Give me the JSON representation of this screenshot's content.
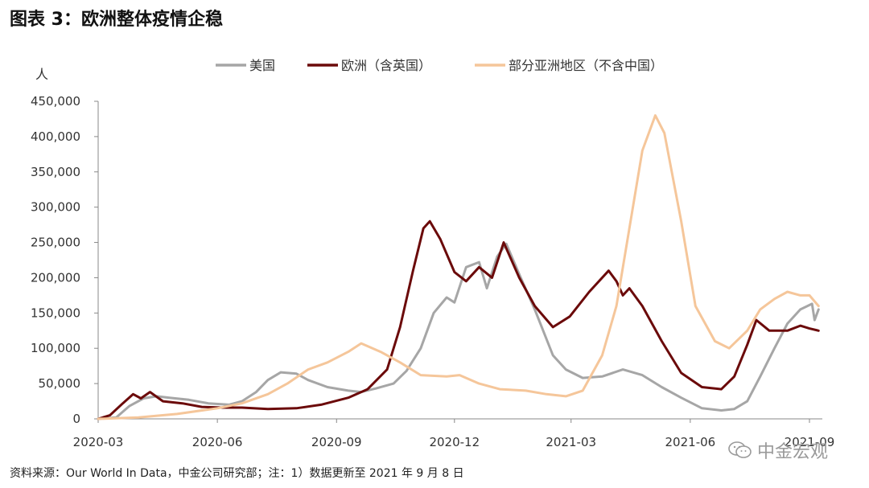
{
  "title": "图表 3：欧洲整体疫情企稳",
  "source": "资料来源：Our World In Data，中金公司研究部；注：1）数据更新至 2021 年 9 月 8 日",
  "watermark": "中金宏观",
  "chart_data": {
    "type": "line",
    "ylabel": "人",
    "ylim": [
      0,
      450000
    ],
    "yticks": [
      0,
      50000,
      100000,
      150000,
      200000,
      250000,
      300000,
      350000,
      400000,
      450000
    ],
    "ytick_labels": [
      "0",
      "50,000",
      "100,000",
      "150,000",
      "200,000",
      "250,000",
      "300,000",
      "350,000",
      "400,000",
      "450,000"
    ],
    "xlim": [
      "2020-03-01",
      "2021-09-08"
    ],
    "xticks": [
      "2020-03",
      "2020-06",
      "2020-09",
      "2020-12",
      "2021-03",
      "2021-06",
      "2021-09"
    ],
    "legend_position": "top",
    "grid": false,
    "series": [
      {
        "name": "美国",
        "color": "#a6a6a6",
        "points": [
          [
            "2020-03-01",
            0
          ],
          [
            "2020-03-15",
            2000
          ],
          [
            "2020-03-25",
            18000
          ],
          [
            "2020-04-05",
            29000
          ],
          [
            "2020-04-15",
            32000
          ],
          [
            "2020-04-25",
            30000
          ],
          [
            "2020-05-10",
            27000
          ],
          [
            "2020-05-25",
            22000
          ],
          [
            "2020-06-10",
            20000
          ],
          [
            "2020-06-20",
            25000
          ],
          [
            "2020-07-01",
            38000
          ],
          [
            "2020-07-10",
            55000
          ],
          [
            "2020-07-20",
            66000
          ],
          [
            "2020-08-01",
            64000
          ],
          [
            "2020-08-10",
            55000
          ],
          [
            "2020-08-25",
            45000
          ],
          [
            "2020-09-10",
            40000
          ],
          [
            "2020-09-20",
            38000
          ],
          [
            "2020-10-01",
            43000
          ],
          [
            "2020-10-15",
            50000
          ],
          [
            "2020-10-25",
            68000
          ],
          [
            "2020-11-05",
            100000
          ],
          [
            "2020-11-15",
            150000
          ],
          [
            "2020-11-25",
            172000
          ],
          [
            "2020-12-01",
            165000
          ],
          [
            "2020-12-10",
            215000
          ],
          [
            "2020-12-20",
            222000
          ],
          [
            "2020-12-26",
            185000
          ],
          [
            "2021-01-03",
            230000
          ],
          [
            "2021-01-10",
            248000
          ],
          [
            "2021-01-20",
            205000
          ],
          [
            "2021-02-01",
            155000
          ],
          [
            "2021-02-15",
            90000
          ],
          [
            "2021-02-25",
            70000
          ],
          [
            "2021-03-10",
            58000
          ],
          [
            "2021-03-25",
            60000
          ],
          [
            "2021-04-10",
            70000
          ],
          [
            "2021-04-25",
            62000
          ],
          [
            "2021-05-10",
            45000
          ],
          [
            "2021-05-25",
            30000
          ],
          [
            "2021-06-10",
            15000
          ],
          [
            "2021-06-25",
            12000
          ],
          [
            "2021-07-05",
            14000
          ],
          [
            "2021-07-15",
            25000
          ],
          [
            "2021-07-25",
            60000
          ],
          [
            "2021-08-05",
            100000
          ],
          [
            "2021-08-15",
            135000
          ],
          [
            "2021-08-25",
            155000
          ],
          [
            "2021-09-03",
            163000
          ],
          [
            "2021-09-05",
            140000
          ],
          [
            "2021-09-08",
            155000
          ]
        ]
      },
      {
        "name": "欧洲（含英国）",
        "color": "#6b0a0a",
        "points": [
          [
            "2020-03-01",
            0
          ],
          [
            "2020-03-10",
            5000
          ],
          [
            "2020-03-20",
            22000
          ],
          [
            "2020-03-28",
            35000
          ],
          [
            "2020-04-03",
            29000
          ],
          [
            "2020-04-10",
            38000
          ],
          [
            "2020-04-20",
            25000
          ],
          [
            "2020-05-05",
            22000
          ],
          [
            "2020-05-20",
            17000
          ],
          [
            "2020-06-05",
            16000
          ],
          [
            "2020-06-20",
            16000
          ],
          [
            "2020-07-10",
            14000
          ],
          [
            "2020-08-01",
            15000
          ],
          [
            "2020-08-20",
            20000
          ],
          [
            "2020-09-10",
            30000
          ],
          [
            "2020-09-25",
            42000
          ],
          [
            "2020-10-10",
            70000
          ],
          [
            "2020-10-20",
            130000
          ],
          [
            "2020-10-30",
            210000
          ],
          [
            "2020-11-07",
            270000
          ],
          [
            "2020-11-12",
            280000
          ],
          [
            "2020-11-20",
            255000
          ],
          [
            "2020-12-01",
            208000
          ],
          [
            "2020-12-10",
            195000
          ],
          [
            "2020-12-20",
            215000
          ],
          [
            "2020-12-30",
            200000
          ],
          [
            "2021-01-08",
            250000
          ],
          [
            "2021-01-20",
            200000
          ],
          [
            "2021-02-01",
            160000
          ],
          [
            "2021-02-15",
            130000
          ],
          [
            "2021-02-28",
            145000
          ],
          [
            "2021-03-15",
            180000
          ],
          [
            "2021-03-30",
            210000
          ],
          [
            "2021-04-05",
            195000
          ],
          [
            "2021-04-10",
            175000
          ],
          [
            "2021-04-15",
            185000
          ],
          [
            "2021-04-25",
            160000
          ],
          [
            "2021-05-10",
            110000
          ],
          [
            "2021-05-25",
            65000
          ],
          [
            "2021-06-10",
            45000
          ],
          [
            "2021-06-25",
            42000
          ],
          [
            "2021-07-05",
            60000
          ],
          [
            "2021-07-15",
            105000
          ],
          [
            "2021-07-22",
            140000
          ],
          [
            "2021-08-01",
            125000
          ],
          [
            "2021-08-15",
            125000
          ],
          [
            "2021-08-25",
            132000
          ],
          [
            "2021-09-01",
            128000
          ],
          [
            "2021-09-08",
            125000
          ]
        ]
      },
      {
        "name": "部分亚洲地区（不含中国）",
        "color": "#f5c69a",
        "points": [
          [
            "2020-03-01",
            0
          ],
          [
            "2020-04-01",
            2000
          ],
          [
            "2020-05-01",
            7000
          ],
          [
            "2020-06-01",
            15000
          ],
          [
            "2020-06-20",
            22000
          ],
          [
            "2020-07-10",
            35000
          ],
          [
            "2020-07-25",
            50000
          ],
          [
            "2020-08-10",
            70000
          ],
          [
            "2020-08-25",
            80000
          ],
          [
            "2020-09-10",
            95000
          ],
          [
            "2020-09-20",
            107000
          ],
          [
            "2020-10-05",
            95000
          ],
          [
            "2020-10-20",
            80000
          ],
          [
            "2020-11-05",
            62000
          ],
          [
            "2020-11-25",
            60000
          ],
          [
            "2020-12-05",
            62000
          ],
          [
            "2020-12-20",
            50000
          ],
          [
            "2021-01-05",
            42000
          ],
          [
            "2021-01-25",
            40000
          ],
          [
            "2021-02-10",
            35000
          ],
          [
            "2021-02-25",
            32000
          ],
          [
            "2021-03-10",
            40000
          ],
          [
            "2021-03-25",
            90000
          ],
          [
            "2021-04-05",
            160000
          ],
          [
            "2021-04-15",
            270000
          ],
          [
            "2021-04-25",
            380000
          ],
          [
            "2021-05-05",
            430000
          ],
          [
            "2021-05-12",
            405000
          ],
          [
            "2021-05-25",
            280000
          ],
          [
            "2021-06-05",
            160000
          ],
          [
            "2021-06-20",
            110000
          ],
          [
            "2021-07-01",
            100000
          ],
          [
            "2021-07-15",
            125000
          ],
          [
            "2021-07-25",
            155000
          ],
          [
            "2021-08-05",
            170000
          ],
          [
            "2021-08-15",
            180000
          ],
          [
            "2021-08-25",
            175000
          ],
          [
            "2021-09-01",
            175000
          ],
          [
            "2021-09-08",
            160000
          ]
        ]
      }
    ]
  }
}
